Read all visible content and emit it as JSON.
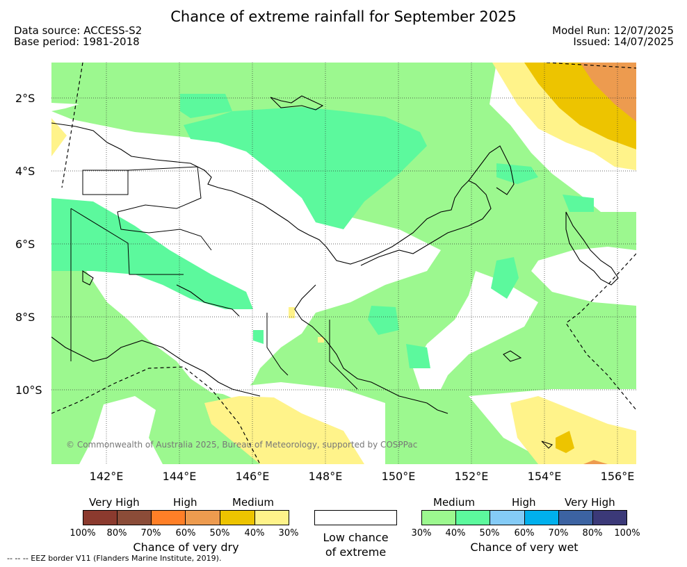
{
  "title": "Chance of extreme rainfall for September 2025",
  "data_source": "Data source: ACCESS-S2",
  "base_period": "Base period: 1981-2018",
  "model_run": "Model Run: 12/07/2025",
  "issued": "Issued: 14/07/2025",
  "map": {
    "lat_ticks": [
      "2°S",
      "4°S",
      "6°S",
      "8°S",
      "10°S"
    ],
    "lon_ticks": [
      "142°E",
      "144°E",
      "146°E",
      "148°E",
      "150°E",
      "152°E",
      "154°E",
      "156°E"
    ],
    "copyright": "© Commonwealth of Australia 2025, Bureau of Meteorology, supported by COSPPac"
  },
  "legend": {
    "dry": {
      "headers": [
        "Very High",
        "High",
        "Medium"
      ],
      "colors": [
        "#8b3a2e",
        "#8b4c38",
        "#ff7f27",
        "#ed9b4f",
        "#edc400",
        "#fff38a"
      ],
      "percents": [
        "100%",
        "80%",
        "70%",
        "60%",
        "50%",
        "40%",
        "30%"
      ],
      "caption": "Chance of very dry"
    },
    "neutral": {
      "color": "#ffffff",
      "caption_line1": "Low chance",
      "caption_line2": "of extreme"
    },
    "wet": {
      "headers": [
        "Medium",
        "High",
        "Very High"
      ],
      "colors": [
        "#9cf88f",
        "#5cf99d",
        "#84cbf6",
        "#00b0ed",
        "#3c63a2",
        "#3b3978"
      ],
      "percents": [
        "30%",
        "40%",
        "50%",
        "60%",
        "70%",
        "80%",
        "100%"
      ],
      "caption": "Chance of very wet"
    }
  },
  "eez_note": "--  --  -- EEZ border V11 (Flanders Marine Institute, 2019)."
}
